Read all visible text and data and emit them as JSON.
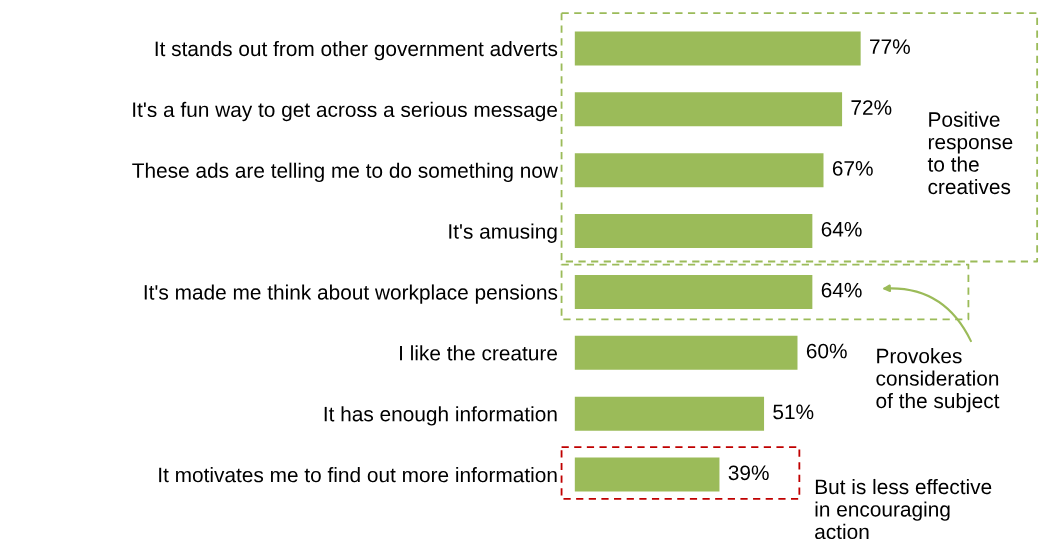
{
  "chart_data": {
    "type": "bar",
    "orientation": "horizontal",
    "categories": [
      "It stands out from other government adverts",
      "It's a fun way to get across a serious message",
      "These ads are telling me to do something now",
      "It's amusing",
      "It's made me think about workplace pensions",
      "I like the creature",
      "It has enough information",
      "It motivates me to find out more information"
    ],
    "values": [
      77,
      72,
      67,
      64,
      64,
      60,
      51,
      39
    ],
    "value_labels": [
      "77%",
      "72%",
      "67%",
      "64%",
      "64%",
      "60%",
      "51%",
      "39%"
    ],
    "color": "#9bbb59",
    "tick_labels": "y",
    "grid": false,
    "annotations": [
      "Positive\nresponse\nto the\ncreatives",
      "Provokes\nconsideration\nof the subject",
      "But is less effective\nin encouraging\naction"
    ]
  }
}
